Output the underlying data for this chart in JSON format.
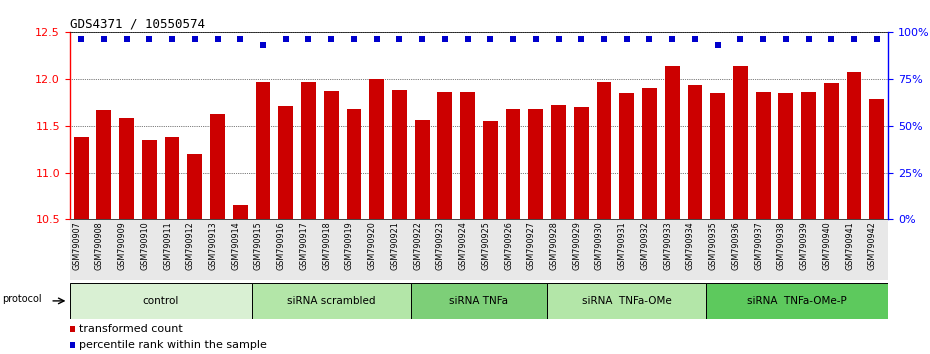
{
  "title": "GDS4371 / 10550574",
  "samples": [
    "GSM790907",
    "GSM790908",
    "GSM790909",
    "GSM790910",
    "GSM790911",
    "GSM790912",
    "GSM790913",
    "GSM790914",
    "GSM790915",
    "GSM790916",
    "GSM790917",
    "GSM790918",
    "GSM790919",
    "GSM790920",
    "GSM790921",
    "GSM790922",
    "GSM790923",
    "GSM790924",
    "GSM790925",
    "GSM790926",
    "GSM790927",
    "GSM790928",
    "GSM790929",
    "GSM790930",
    "GSM790931",
    "GSM790932",
    "GSM790933",
    "GSM790934",
    "GSM790935",
    "GSM790936",
    "GSM790937",
    "GSM790938",
    "GSM790939",
    "GSM790940",
    "GSM790941",
    "GSM790942"
  ],
  "bar_values": [
    11.38,
    11.67,
    11.58,
    11.35,
    11.38,
    11.2,
    11.62,
    10.65,
    11.97,
    11.71,
    11.97,
    11.87,
    11.68,
    12.0,
    11.88,
    11.56,
    11.86,
    11.86,
    11.55,
    11.68,
    11.68,
    11.72,
    11.7,
    11.97,
    11.85,
    11.9,
    12.14,
    11.93,
    11.85,
    12.14,
    11.86,
    11.85,
    11.86,
    11.95,
    12.07,
    11.78
  ],
  "percentile_values": [
    96,
    96,
    96,
    96,
    96,
    96,
    96,
    96,
    93,
    96,
    96,
    96,
    96,
    96,
    96,
    96,
    96,
    96,
    96,
    96,
    96,
    96,
    96,
    96,
    96,
    96,
    96,
    96,
    93,
    96,
    96,
    96,
    96,
    96,
    96,
    96
  ],
  "bar_color": "#cc0000",
  "percentile_color": "#0000cc",
  "ylim": [
    10.5,
    12.5
  ],
  "yticks_left": [
    10.5,
    11.0,
    11.5,
    12.0,
    12.5
  ],
  "yticks_right": [
    0,
    25,
    50,
    75,
    100
  ],
  "ytick_right_labels": [
    "0%",
    "25%",
    "50%",
    "75%",
    "100%"
  ],
  "groups": [
    {
      "label": "control",
      "start": 0,
      "end": 7,
      "color": "#d9f0d3"
    },
    {
      "label": "siRNA scrambled",
      "start": 8,
      "end": 14,
      "color": "#b3e6a8"
    },
    {
      "label": "siRNA TNFa",
      "start": 15,
      "end": 20,
      "color": "#7dcf78"
    },
    {
      "label": "siRNA  TNFa-OMe",
      "start": 21,
      "end": 27,
      "color": "#b3e6a8"
    },
    {
      "label": "siRNA  TNFa-OMe-P",
      "start": 28,
      "end": 35,
      "color": "#5dc95d"
    }
  ],
  "background_color": "#ffffff"
}
